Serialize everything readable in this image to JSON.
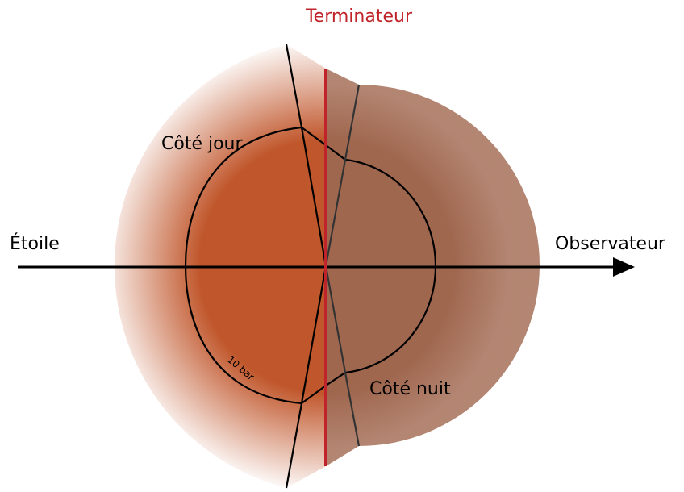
{
  "labels": {
    "terminator": "Terminateur",
    "day_side": "Côté jour",
    "night_side": "Côté nuit",
    "star": "Étoile",
    "observer": "Observateur",
    "pressure_level": "10 bar"
  }
}
